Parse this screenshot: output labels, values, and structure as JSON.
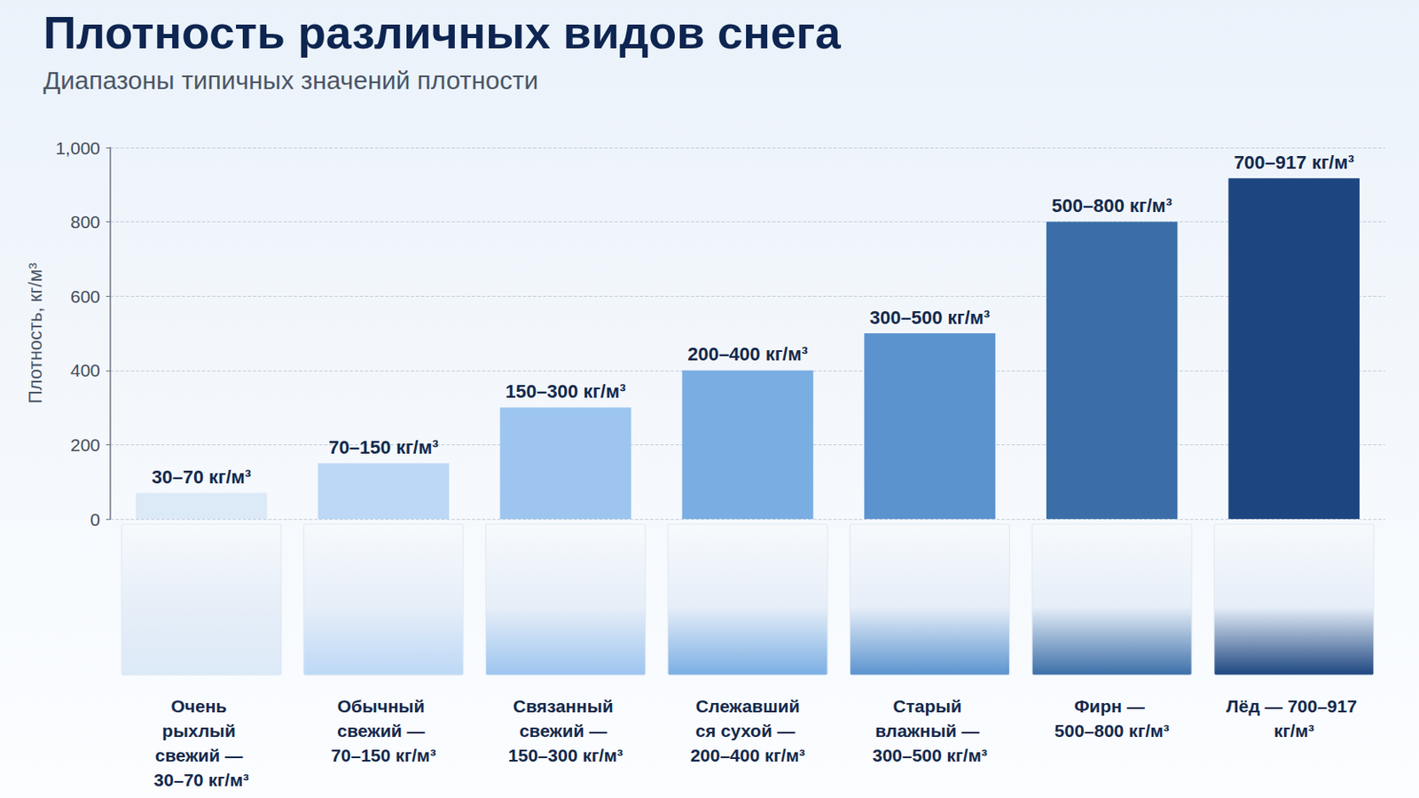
{
  "chart_data": {
    "type": "bar",
    "title": "Плотность различных видов снега",
    "subtitle": "Диапазоны типичных значений плотности",
    "ylabel": "Плотность, кг/м³",
    "categories": [
      "Очень рыхлый свежий — 30–70 кг/м³",
      "Обычный свежий — 70–150 кг/м³",
      "Связанный свежий — 150–300 кг/м³",
      "Слежавшийся сухой — 200–400 кг/м³",
      "Старый влажный — 300–500 кг/м³",
      "Фирн — 500–800 кг/м³",
      "Лёд — 700–917 кг/м³"
    ],
    "values": [
      70,
      150,
      300,
      400,
      500,
      800,
      917
    ],
    "value_labels": [
      "30–70 кг/м³",
      "70–150 кг/м³",
      "150–300 кг/м³",
      "200–400 кг/м³",
      "300–500 кг/м³",
      "500–800 кг/м³",
      "700–917 кг/м³"
    ],
    "colors": [
      "#dce9f7",
      "#bcd8f6",
      "#9dc5ef",
      "#7aaee3",
      "#5b93cf",
      "#3b6ea8",
      "#1d4680"
    ],
    "ylim": [
      0,
      1000
    ],
    "yticks": [
      0,
      200,
      400,
      600,
      800,
      1000
    ],
    "grid": true,
    "data_labels": true
  }
}
